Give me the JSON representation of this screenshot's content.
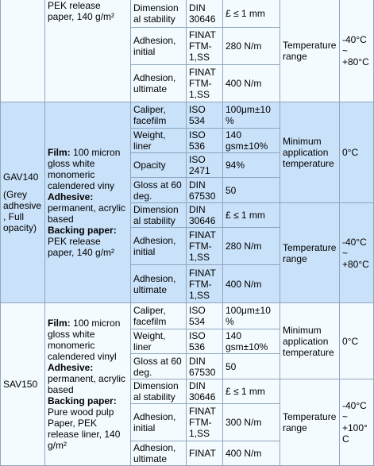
{
  "top": {
    "prev_material_tail": "PEK release paper, 140 g/m²",
    "rows": [
      [
        "Dimensional stability",
        "DIN 30646",
        "£ ≤ 1 mm"
      ],
      [
        "Adhesion, initial",
        "FINAT FTM-1,SS",
        "280 N/m"
      ],
      [
        "Adhesion, ultimate",
        "FINAT FTM-1,SS",
        "400 N/m"
      ]
    ],
    "temp_label": "Temperature range",
    "temp_value": "-40°C ~ +80°C"
  },
  "gav140": {
    "name": "GAV140",
    "name_note": "(Grey adhesive, Full opacity)",
    "film_label": "Film:",
    "film_text": "100 micron gloss white monomeric calendered viny",
    "adhesive_label": "Adhesive:",
    "adhesive_text": "permanent, acrylic based",
    "backing_label": "Backing paper:",
    "backing_text": "PEK release paper, 140 g/m²",
    "rows": [
      [
        "Caliper, facefilm",
        "ISO 534",
        "100μm±10%"
      ],
      [
        "Weight, liner",
        "ISO 536",
        "140 gsm±10%"
      ],
      [
        "Opacity",
        "ISO 2471",
        "94%"
      ],
      [
        "Gloss at 60 deg.",
        "DIN 67530",
        "50"
      ],
      [
        "Dimensional stability",
        "DIN 30646",
        "£ ≤ 1 mm"
      ],
      [
        "Adhesion, initial",
        "FINAT FTM-1,SS",
        "280 N/m"
      ],
      [
        "Adhesion, ultimate",
        "FINAT FTM-1,SS",
        "400 N/m"
      ]
    ],
    "min_temp_label": "Minimum application temperature",
    "min_temp_value": "0°C",
    "temp_label": "Temperature range",
    "temp_value": "-40°C ~ +80°C"
  },
  "sav150": {
    "name": "SAV150",
    "film_label": "Film:",
    "film_text": "100 micron gloss white monomeric calendered vinyl",
    "adhesive_label": "Adhesive:",
    "adhesive_text": "permanent, acrylic based",
    "backing_label": "Backing paper:",
    "backing_text": "Pure wood pulp Paper, PEK release liner, 140 g/m²",
    "rows": [
      [
        "Caliper, facefilm",
        "ISO 534",
        "100μm±10%"
      ],
      [
        "Weight, liner",
        "ISO 536",
        "140 gsm±10%"
      ],
      [
        "Gloss at 60 deg.",
        "DIN 67530",
        "50"
      ],
      [
        "Dimensional stability",
        "DIN 30646",
        "£ ≤ 1 mm"
      ],
      [
        "Adhesion, initial",
        "FINAT FTM-1,SS",
        "300 N/m"
      ],
      [
        "Adhesion, ultimate",
        "FINAT",
        "400 N/m"
      ]
    ],
    "min_temp_label": "Minimum application temperature",
    "min_temp_value": "0°C",
    "temp_label": "Temperature range",
    "temp_value": "-40°C ~ +100°C"
  }
}
